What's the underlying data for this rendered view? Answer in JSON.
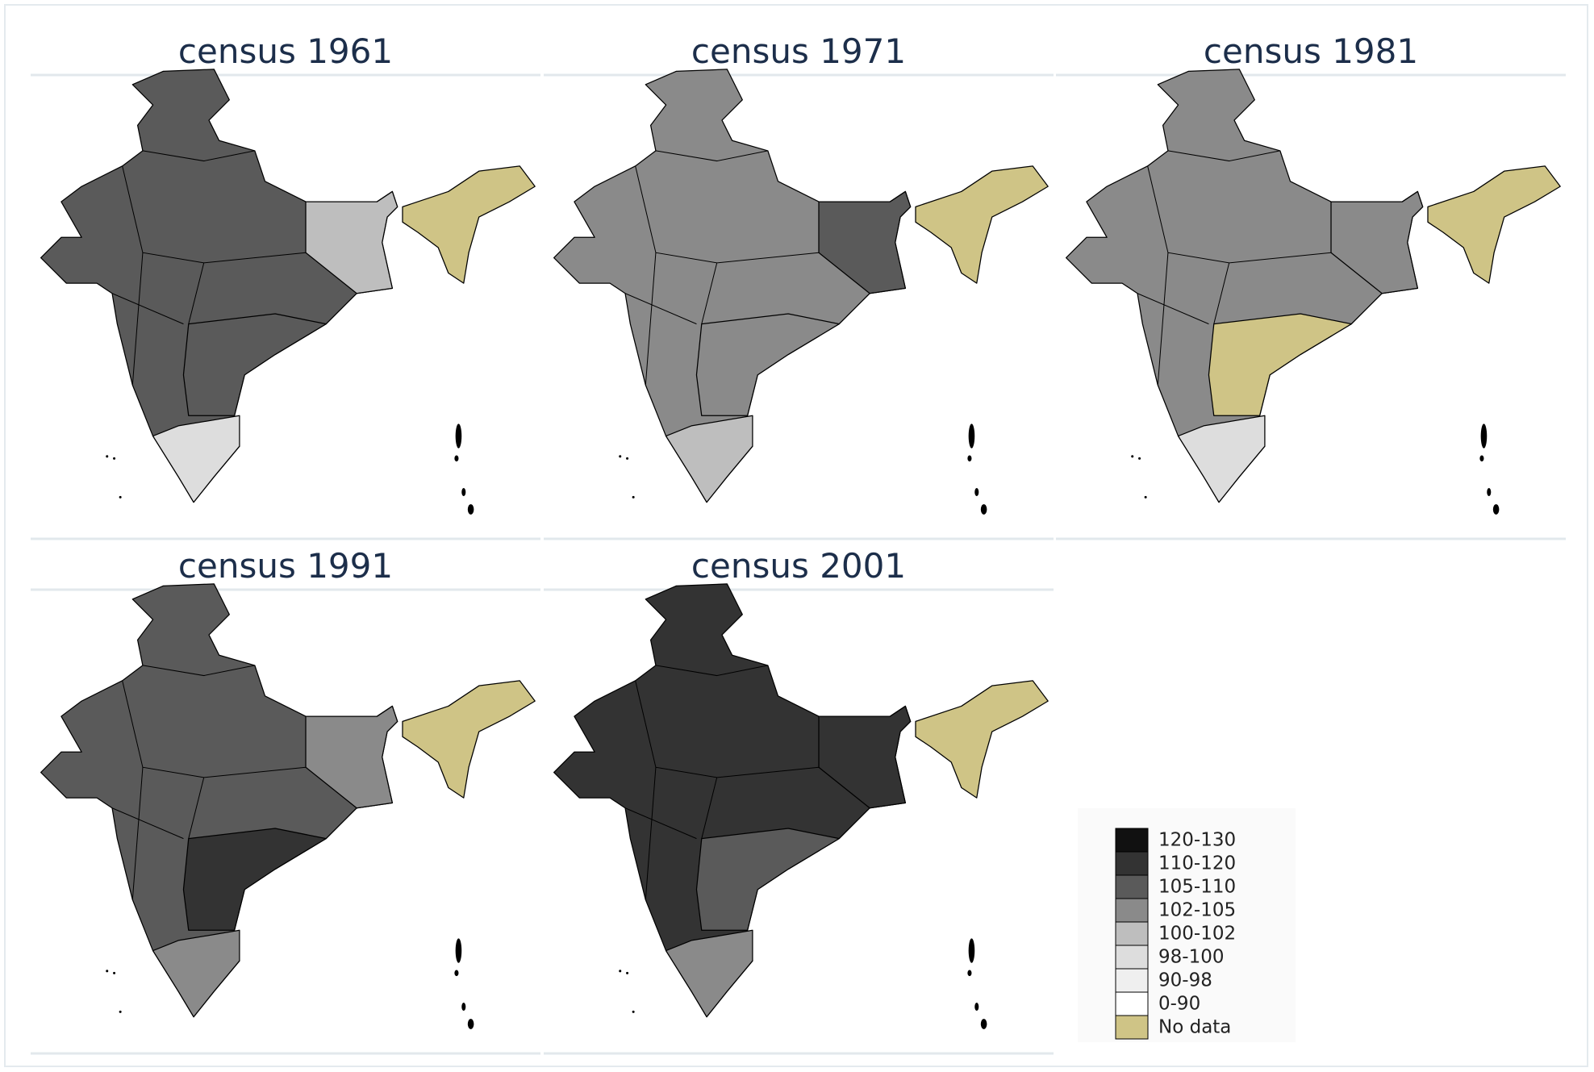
{
  "panels": [
    {
      "title": "census 1961"
    },
    {
      "title": "census 1971"
    },
    {
      "title": "census 1981"
    },
    {
      "title": "census 1991"
    },
    {
      "title": "census 2001"
    }
  ],
  "legend": {
    "items": [
      {
        "label": "120-130",
        "color": "#111111"
      },
      {
        "label": "110-120",
        "color": "#333333"
      },
      {
        "label": "105-110",
        "color": "#5a5a5a"
      },
      {
        "label": "102-105",
        "color": "#8a8a8a"
      },
      {
        "label": "100-102",
        "color": "#bebebe"
      },
      {
        "label": "98-100",
        "color": "#dddddd"
      },
      {
        "label": "90-98",
        "color": "#efefef"
      },
      {
        "label": "0-90",
        "color": "#ffffff"
      },
      {
        "label": "No data",
        "color": "#cfc486"
      }
    ]
  }
}
